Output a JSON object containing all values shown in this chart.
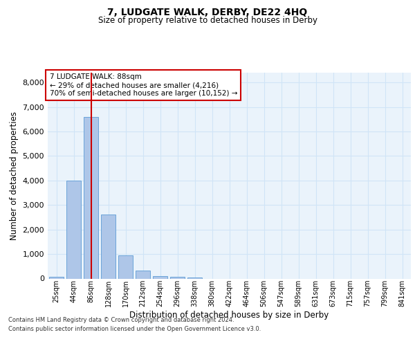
{
  "title": "7, LUDGATE WALK, DERBY, DE22 4HQ",
  "subtitle": "Size of property relative to detached houses in Derby",
  "xlabel": "Distribution of detached houses by size in Derby",
  "ylabel": "Number of detached properties",
  "categories": [
    "25sqm",
    "44sqm",
    "86sqm",
    "128sqm",
    "170sqm",
    "212sqm",
    "254sqm",
    "296sqm",
    "338sqm",
    "380sqm",
    "422sqm",
    "464sqm",
    "506sqm",
    "547sqm",
    "589sqm",
    "631sqm",
    "673sqm",
    "715sqm",
    "757sqm",
    "799sqm",
    "841sqm"
  ],
  "bar_heights": [
    70,
    4000,
    6600,
    2600,
    950,
    320,
    100,
    60,
    50,
    0,
    0,
    0,
    0,
    0,
    0,
    0,
    0,
    0,
    0,
    0,
    0
  ],
  "bar_color": "#aec6e8",
  "bar_edge_color": "#5b9bd5",
  "grid_color": "#d0e4f7",
  "background_color": "#eaf3fb",
  "vline_x_index": 2,
  "vline_color": "#cc0000",
  "annotation_text": "7 LUDGATE WALK: 88sqm\n← 29% of detached houses are smaller (4,216)\n70% of semi-detached houses are larger (10,152) →",
  "annotation_box_color": "#ffffff",
  "annotation_box_edge": "#cc0000",
  "ylim": [
    0,
    8400
  ],
  "yticks": [
    0,
    1000,
    2000,
    3000,
    4000,
    5000,
    6000,
    7000,
    8000
  ],
  "footer_line1": "Contains HM Land Registry data © Crown copyright and database right 2024.",
  "footer_line2": "Contains public sector information licensed under the Open Government Licence v3.0."
}
